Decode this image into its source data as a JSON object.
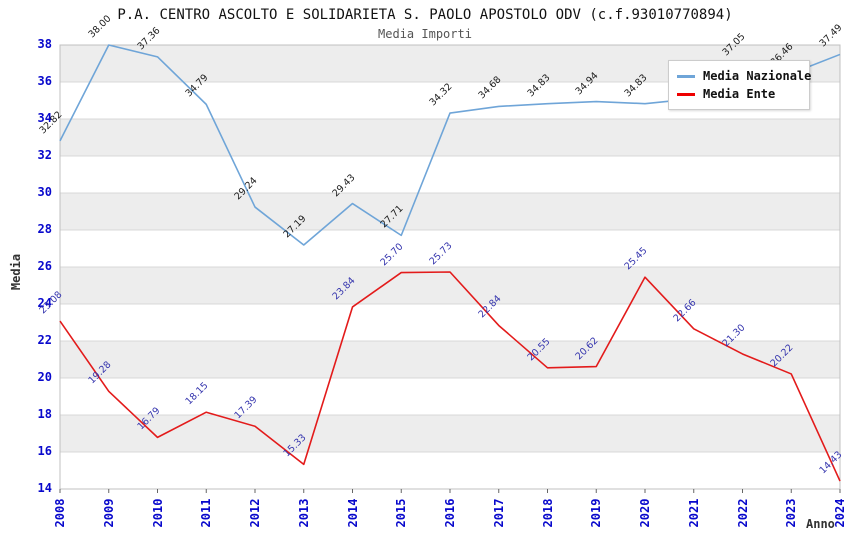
{
  "title": "P.A. CENTRO ASCOLTO E SOLIDARIETA S. PAOLO APOSTOLO ODV (c.f.93010770894)",
  "subtitle": "Media Importi",
  "legend": {
    "items": [
      {
        "label": "Media Nazionale",
        "color": "#6fa5d8"
      },
      {
        "label": "Media Ente",
        "color": "#ee0000"
      }
    ]
  },
  "axes": {
    "x_title": "Anno",
    "y_title": "Media",
    "y_ticks": [
      14,
      16,
      18,
      20,
      22,
      24,
      26,
      28,
      30,
      32,
      34,
      36,
      38
    ],
    "x_ticks": [
      "2008",
      "2009",
      "2010",
      "2011",
      "2012",
      "2013",
      "2014",
      "2015",
      "2016",
      "2017",
      "2018",
      "2019",
      "2020",
      "2021",
      "2022",
      "2023",
      "2024"
    ]
  },
  "chart_data": {
    "type": "line",
    "categories": [
      "2008",
      "2009",
      "2010",
      "2011",
      "2012",
      "2013",
      "2014",
      "2015",
      "2016",
      "2017",
      "2018",
      "2019",
      "2020",
      "2021",
      "2022",
      "2023",
      "2024"
    ],
    "series": [
      {
        "name": "Media Nazionale",
        "color": "#6fa5d8",
        "label_color": "#1a1a1a",
        "values": [
          32.82,
          38.0,
          37.36,
          34.79,
          29.24,
          27.19,
          29.43,
          27.71,
          34.32,
          34.68,
          34.83,
          34.94,
          34.83,
          35.1,
          37.05,
          36.46,
          37.49
        ],
        "labels": [
          "32.82",
          "38.00",
          "37.36",
          "34.79",
          "29.24",
          "27.19",
          "29.43",
          "27.71",
          "34.32",
          "34.68",
          "34.83",
          "34.94",
          "34.83",
          "",
          "37.05",
          "36.46",
          "37.49"
        ]
      },
      {
        "name": "Media Ente",
        "color": "#e31b1b",
        "label_color": "#3434ad",
        "values": [
          23.08,
          19.28,
          16.79,
          18.15,
          17.39,
          15.33,
          23.84,
          25.7,
          25.73,
          22.84,
          20.55,
          20.62,
          25.45,
          22.66,
          21.3,
          20.22,
          14.43
        ],
        "labels": [
          "23.08",
          "19.28",
          "16.79",
          "18.15",
          "17.39",
          "15.33",
          "23.84",
          "25.70",
          "25.73",
          "22.84",
          "20.55",
          "20.62",
          "25.45",
          "22.66",
          "21.30",
          "20.22",
          "14.43"
        ]
      }
    ],
    "ylim": [
      14,
      38
    ],
    "grid": true,
    "band_ranges": [
      [
        16,
        18
      ],
      [
        20,
        22
      ],
      [
        24,
        26
      ],
      [
        28,
        30
      ],
      [
        32,
        34
      ],
      [
        36,
        38
      ]
    ],
    "band_color": "#ededed",
    "gridline_color": "#d8d8d8",
    "border_color": "#c0c0c0",
    "legend_position": "top-right"
  }
}
